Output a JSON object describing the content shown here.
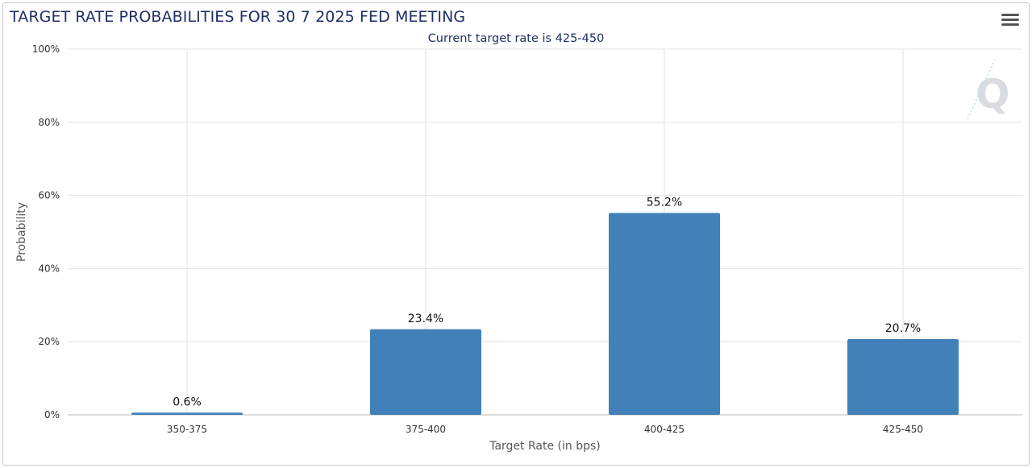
{
  "header": {
    "title": "TARGET RATE PROBABILITIES FOR 30 7 2025 FED MEETING",
    "subtitle": "Current target rate is 425-450",
    "menu_icon": "hamburger-menu-icon",
    "watermark_icon": "q-logo-icon"
  },
  "colors": {
    "bar": "#4180b8",
    "title": "#1e2f66",
    "grid": "#e1e1e1"
  },
  "chart_data": {
    "type": "bar",
    "title": "TARGET RATE PROBABILITIES FOR 30 7 2025 FED MEETING",
    "subtitle": "Current target rate is 425-450",
    "categories": [
      "350-375",
      "375-400",
      "400-425",
      "425-450"
    ],
    "values": [
      0.6,
      23.4,
      55.2,
      20.7
    ],
    "value_labels": [
      "0.6%",
      "23.4%",
      "55.2%",
      "20.7%"
    ],
    "xlabel": "Target Rate (in bps)",
    "ylabel": "Probability",
    "ylim": [
      0,
      100
    ],
    "yticks": [
      0,
      20,
      40,
      60,
      80,
      100
    ],
    "ytick_labels": [
      "0%",
      "20%",
      "40%",
      "60%",
      "80%",
      "100%"
    ],
    "grid": true,
    "legend": false
  }
}
